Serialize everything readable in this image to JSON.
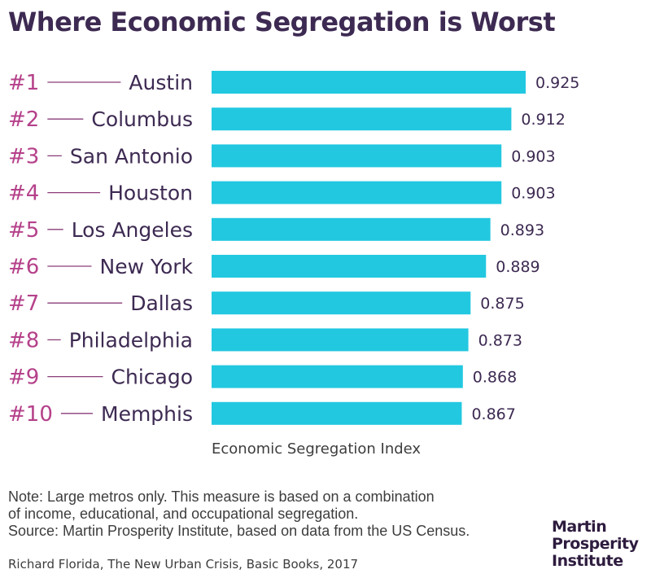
{
  "title": "Where Economic Segregation is Worst",
  "colors": {
    "bar": "#22c8e0",
    "rank": "#b5418a",
    "city": "#3d2a52",
    "connector": "#8a3c78",
    "value": "#3d2a52"
  },
  "chart_data": {
    "type": "bar",
    "orientation": "horizontal",
    "xlabel": "Economic Segregation Index",
    "xlim": [
      0.64,
      0.925
    ],
    "grid": false,
    "categories": [
      "Austin",
      "Columbus",
      "San Antonio",
      "Houston",
      "Los Angeles",
      "New York",
      "Dallas",
      "Philadelphia",
      "Chicago",
      "Memphis"
    ],
    "ranks": [
      "#1",
      "#2",
      "#3",
      "#4",
      "#5",
      "#6",
      "#7",
      "#8",
      "#9",
      "#10"
    ],
    "values": [
      0.925,
      0.912,
      0.903,
      0.903,
      0.893,
      0.889,
      0.875,
      0.873,
      0.868,
      0.867
    ],
    "value_labels": [
      "0.925",
      "0.912",
      "0.903",
      "0.903",
      "0.893",
      "0.889",
      "0.875",
      "0.873",
      "0.868",
      "0.867"
    ]
  },
  "notes": {
    "line1": "Note: Large metros only. This measure is based on a combination",
    "line2": "of income, educational, and occupational segregation.",
    "line3": "Source: Martin Prosperity Institute, based on data from the US Census."
  },
  "credit": "Richard Florida, The New Urban Crisis, Basic Books, 2017",
  "logo": {
    "line1": "Martin",
    "line2": "Prosperity",
    "line3": "Institute"
  }
}
